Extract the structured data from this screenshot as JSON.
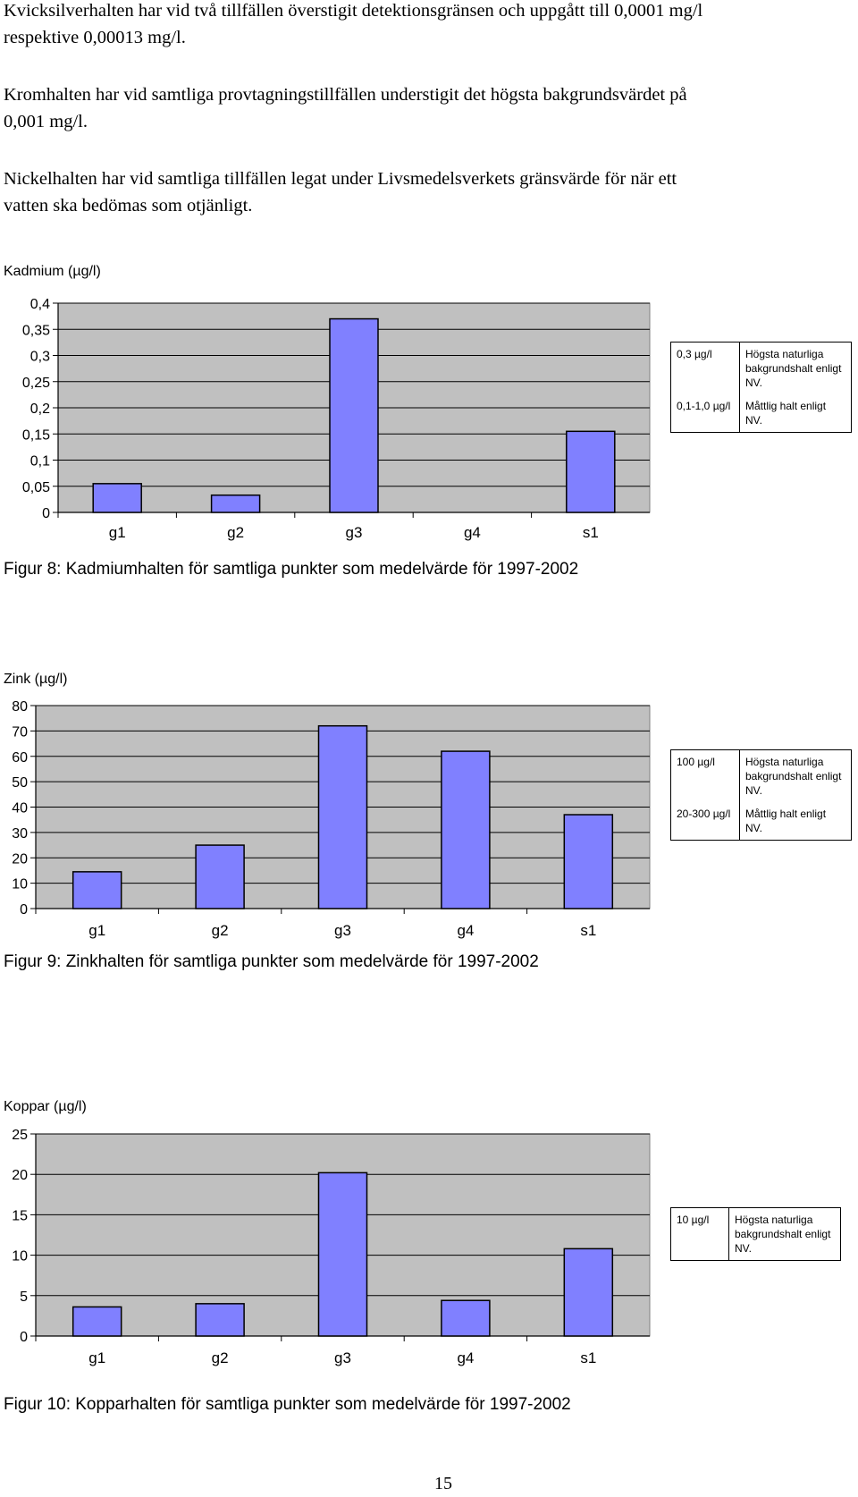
{
  "paragraphs": {
    "p1": "Kvicksilverhalten har vid två tillfällen överstigit detektionsgränsen och uppgått till 0,0001 mg/l\nrespektive 0,00013 mg/l.",
    "p2": "Kromhalten har vid samtliga provtagningstillfällen understigit det högsta bakgrundsvärdet på\n0,001 mg/l.",
    "p3": "Nickelhalten har vid samtliga tillfällen legat under Livsmedelsverkets gränsvärde för när ett\nvatten ska bedömas som otjänligt."
  },
  "colors": {
    "bar": "#8080ff",
    "plot_bg": "#c0c0c0",
    "gridline": "#000000"
  },
  "chart_data": [
    {
      "type": "bar",
      "title": "Kadmium (µg/l)",
      "caption": "Figur 8: Kadmiumhalten för samtliga punkter som medelvärde för 1997-2002",
      "categories": [
        "g1",
        "g2",
        "g3",
        "g4",
        "s1"
      ],
      "values": [
        0.055,
        0.033,
        0.37,
        0,
        0.155
      ],
      "ylim": [
        0,
        0.4
      ],
      "yticks": [
        0,
        0.05,
        0.1,
        0.15,
        0.2,
        0.25,
        0.3,
        0.35,
        0.4
      ],
      "ytick_labels": [
        "0",
        "0,05",
        "0,1",
        "0,15",
        "0,2",
        "0,25",
        "0,3",
        "0,35",
        "0,4"
      ],
      "grid": true,
      "reference_table": [
        {
          "value": "0,3 µg/l",
          "desc": "Högsta naturliga bakgrundshalt enligt NV."
        },
        {
          "value": "0,1-1,0 µg/l",
          "desc": "Måttlig halt enligt NV."
        }
      ]
    },
    {
      "type": "bar",
      "title": "Zink (µg/l)",
      "caption": "Figur 9: Zinkhalten för samtliga punkter som medelvärde för 1997-2002",
      "categories": [
        "g1",
        "g2",
        "g3",
        "g4",
        "s1"
      ],
      "values": [
        14.5,
        25,
        72,
        62,
        37
      ],
      "ylim": [
        0,
        80
      ],
      "yticks": [
        0,
        10,
        20,
        30,
        40,
        50,
        60,
        70,
        80
      ],
      "ytick_labels": [
        "0",
        "10",
        "20",
        "30",
        "40",
        "50",
        "60",
        "70",
        "80"
      ],
      "grid": true,
      "reference_table": [
        {
          "value": "100 µg/l",
          "desc": "Högsta naturliga bakgrundshalt enligt NV."
        },
        {
          "value": "20-300 µg/l",
          "desc": "Måttlig halt enligt NV."
        }
      ]
    },
    {
      "type": "bar",
      "title": "Koppar (µg/l)",
      "caption": "Figur 10: Kopparhalten för samtliga punkter som medelvärde för 1997-2002",
      "categories": [
        "g1",
        "g2",
        "g3",
        "g4",
        "s1"
      ],
      "values": [
        3.6,
        4,
        20.2,
        4.4,
        10.8
      ],
      "ylim": [
        0,
        25
      ],
      "yticks": [
        0,
        5,
        10,
        15,
        20,
        25
      ],
      "ytick_labels": [
        "0",
        "5",
        "10",
        "15",
        "20",
        "25"
      ],
      "grid": true,
      "reference_table": [
        {
          "value": "10 µg/l",
          "desc": "Högsta naturliga bakgrundshalt enligt NV."
        }
      ]
    }
  ],
  "page_number": "15"
}
